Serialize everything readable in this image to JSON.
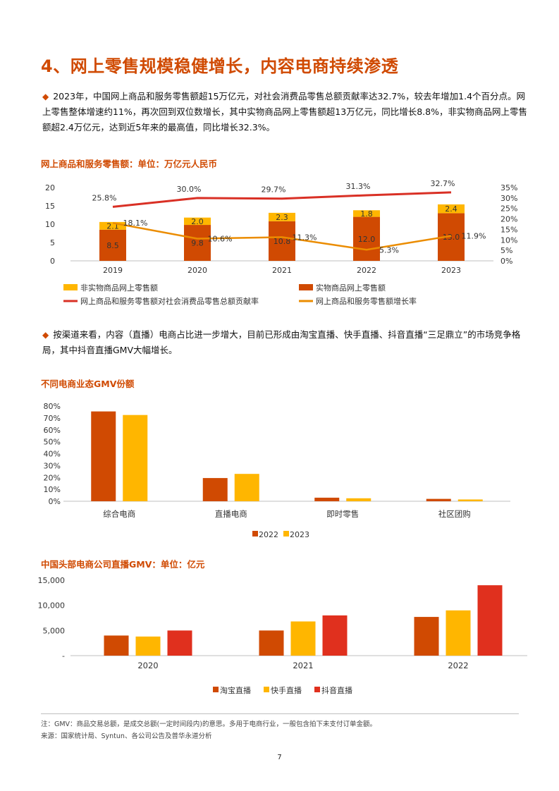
{
  "heading": "4、网上零售规模稳健增长，内容电商持续渗透",
  "paragraph1": "2023年，中国网上商品和服务零售额超15万亿元，对社会消费品零售总额贡献率达32.7%，较去年增加1.4个百分点。网上零售整体增速约11%，再次回到双位数增长，其中实物商品网上零售额超13万亿元，同比增长8.8%，非实物商品网上零售额超2.4万亿元，达到近5年来的最高值，同比增长32.3%。",
  "paragraph2": "按渠道来看，内容（直播）电商占比进一步增大，目前已形成由淘宝直播、快手直播、抖音直播“三足鼎立”的市场竞争格局，其中抖音直播GMV大幅增长。",
  "bullet_glyph": "◆",
  "chart1_title": "网上商品和服务零售额：单位：万亿元人民币",
  "chart2_title": "不同电商业态GMV份额",
  "chart3_title": "中国头部电商公司直播GMV：单位：亿元",
  "note": "注：GMV：商品交易总额，是成交总额(一定时间段内)的意思。多用于电商行业，一般包含拍下未支付订单金额。",
  "source": "来源：国家统计局、Syntun、各公司公告及普华永道分析",
  "page_number": "7",
  "colors": {
    "orange_dark": "#d04a02",
    "amber": "#ffb600",
    "red": "#e0301e",
    "growth_line": "#eb8c00"
  },
  "chart_data": [
    {
      "type": "bar",
      "stacked": true,
      "title": "网上商品和服务零售额：单位：万亿元人民币",
      "categories": [
        "2019",
        "2020",
        "2021",
        "2022",
        "2023"
      ],
      "ylim": [
        0,
        20
      ],
      "yticks": [
        "0",
        "5",
        "10",
        "15",
        "20"
      ],
      "y2ticks": [
        "0%",
        "5%",
        "10%",
        "15%",
        "20%",
        "25%",
        "30%",
        "35%"
      ],
      "y2lim": [
        0,
        35
      ],
      "series": [
        {
          "name": "实物商品网上零售额",
          "values": [
            8.5,
            9.8,
            10.8,
            12.0,
            13.0
          ],
          "labels": [
            "8.5",
            "9.8",
            "10.8",
            "12.0",
            "13.0"
          ],
          "color": "#d04a02"
        },
        {
          "name": "非实物商品网上零售额",
          "values": [
            2.1,
            2.0,
            2.3,
            1.8,
            2.4
          ],
          "labels": [
            "2.1",
            "2.0",
            "2.3",
            "1.8",
            "2.4"
          ],
          "color": "#ffb600"
        }
      ],
      "lines": [
        {
          "name": "网上商品和服务零售额对社会消费品零售总额贡献率",
          "values": [
            25.8,
            30.0,
            29.7,
            31.3,
            32.7
          ],
          "labels": [
            "25.8%",
            "30.0%",
            "29.7%",
            "31.3%",
            "32.7%"
          ],
          "color": "#d93025"
        },
        {
          "name": "网上商品和服务零售额增长率",
          "values": [
            18.1,
            10.6,
            11.3,
            5.3,
            11.9
          ],
          "labels": [
            "18.1%",
            "10.6%",
            "11.3%",
            "5.3%",
            "11.9%"
          ],
          "color": "#eb8c00"
        }
      ],
      "legend": "bottom"
    },
    {
      "type": "bar",
      "title": "不同电商业态GMV份额",
      "categories": [
        "综合电商",
        "直播电商",
        "即时零售",
        "社区团购"
      ],
      "ylim": [
        0,
        80
      ],
      "yticks": [
        "0%",
        "10%",
        "20%",
        "30%",
        "40%",
        "50%",
        "60%",
        "70%",
        "80%"
      ],
      "series": [
        {
          "name": "2022",
          "values": [
            75.5,
            19.5,
            3.0,
            2.0
          ],
          "color": "#d04a02"
        },
        {
          "name": "2023",
          "values": [
            72.5,
            23.0,
            2.5,
            1.5
          ],
          "color": "#ffb600"
        }
      ],
      "legend": "bottom"
    },
    {
      "type": "bar",
      "title": "中国头部电商公司直播GMV：单位：亿元",
      "categories": [
        "2020",
        "2021",
        "2022"
      ],
      "ylim": [
        0,
        15000
      ],
      "yticks": [
        "-",
        "5,000",
        "10,000",
        "15,000"
      ],
      "series": [
        {
          "name": "淘宝直播",
          "values": [
            4000,
            5000,
            7700
          ],
          "color": "#d04a02"
        },
        {
          "name": "快手直播",
          "values": [
            3800,
            6800,
            9000
          ],
          "color": "#ffb600"
        },
        {
          "name": "抖音直播",
          "values": [
            5000,
            8000,
            14000
          ],
          "color": "#e0301e"
        }
      ],
      "legend": "bottom"
    }
  ]
}
